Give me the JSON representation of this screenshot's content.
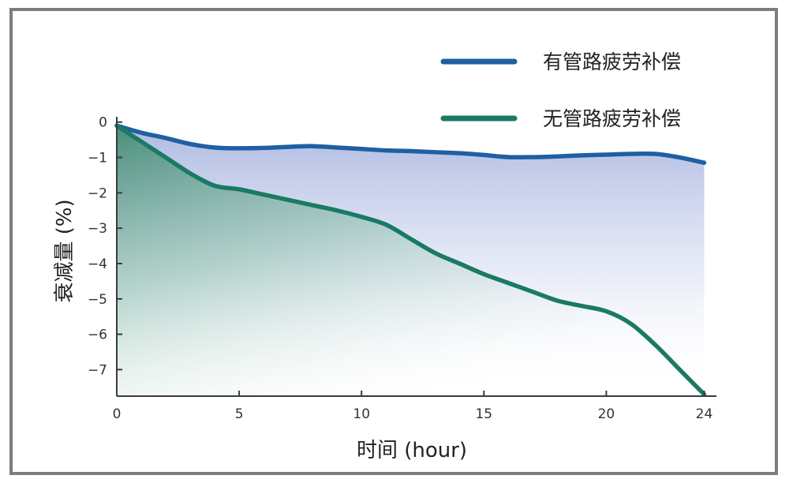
{
  "chart_data": {
    "type": "area",
    "xlabel": "时间 (hour)",
    "ylabel": "衰减量 (%)",
    "xlim": [
      0,
      24.5
    ],
    "ylim": [
      -7.75,
      0.15
    ],
    "x_ticks": [
      0,
      5,
      10,
      15,
      20,
      24
    ],
    "y_ticks": [
      0,
      -1,
      -2,
      -3,
      -4,
      -5,
      -6,
      -7
    ],
    "y_tick_labels": [
      "0",
      "−1",
      "−2",
      "−3",
      "−4",
      "−5",
      "−6",
      "−7"
    ],
    "grid": false,
    "legend_position": "top-right",
    "series": [
      {
        "name": "有管路疲劳补偿",
        "color": "#1f5fa3",
        "points": [
          [
            0,
            -0.1
          ],
          [
            1,
            -0.3
          ],
          [
            2,
            -0.45
          ],
          [
            3,
            -0.62
          ],
          [
            4,
            -0.72
          ],
          [
            5,
            -0.74
          ],
          [
            6,
            -0.73
          ],
          [
            7,
            -0.7
          ],
          [
            8,
            -0.68
          ],
          [
            9,
            -0.72
          ],
          [
            10,
            -0.76
          ],
          [
            11,
            -0.8
          ],
          [
            12,
            -0.82
          ],
          [
            13,
            -0.85
          ],
          [
            14,
            -0.88
          ],
          [
            15,
            -0.93
          ],
          [
            16,
            -0.99
          ],
          [
            17,
            -0.99
          ],
          [
            18,
            -0.97
          ],
          [
            19,
            -0.94
          ],
          [
            20,
            -0.92
          ],
          [
            21,
            -0.9
          ],
          [
            22,
            -0.9
          ],
          [
            23,
            -1.0
          ],
          [
            24,
            -1.15
          ]
        ]
      },
      {
        "name": "无管路疲劳补偿",
        "color": "#1a7a63",
        "points": [
          [
            0,
            -0.1
          ],
          [
            1,
            -0.55
          ],
          [
            2,
            -1.0
          ],
          [
            3,
            -1.45
          ],
          [
            4,
            -1.8
          ],
          [
            5,
            -1.9
          ],
          [
            6,
            -2.05
          ],
          [
            7,
            -2.2
          ],
          [
            8,
            -2.35
          ],
          [
            9,
            -2.5
          ],
          [
            10,
            -2.68
          ],
          [
            11,
            -2.9
          ],
          [
            12,
            -3.3
          ],
          [
            13,
            -3.7
          ],
          [
            14,
            -4.0
          ],
          [
            15,
            -4.3
          ],
          [
            16,
            -4.55
          ],
          [
            17,
            -4.8
          ],
          [
            18,
            -5.05
          ],
          [
            19,
            -5.2
          ],
          [
            20,
            -5.35
          ],
          [
            21,
            -5.7
          ],
          [
            22,
            -6.3
          ],
          [
            23,
            -7.0
          ],
          [
            24,
            -7.7
          ]
        ]
      }
    ]
  }
}
